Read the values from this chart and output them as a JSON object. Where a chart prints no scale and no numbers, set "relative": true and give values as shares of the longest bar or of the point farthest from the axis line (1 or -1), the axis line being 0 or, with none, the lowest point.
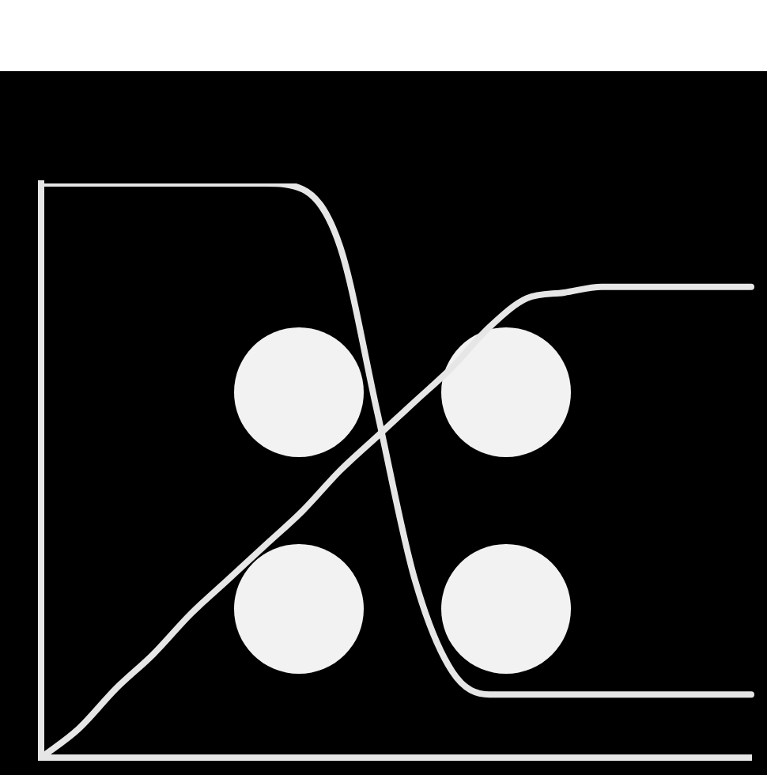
{
  "chart_data": {
    "type": "line",
    "relative": true,
    "categories": [
      null,
      null,
      null,
      null,
      null,
      null,
      null,
      null,
      null,
      null,
      null,
      null,
      null,
      null,
      null,
      null,
      null,
      null,
      null,
      null
    ],
    "series": [
      {
        "color": "#e6e6e6",
        "values": [
          1.0,
          1.0,
          1.0,
          1.0,
          1.0,
          1.0,
          1.0,
          0.99,
          0.89,
          0.6,
          0.31,
          0.15,
          0.11,
          0.11,
          0.11,
          0.11,
          0.11,
          0.11,
          0.11,
          0.11
        ]
      },
      {
        "color": "#e6e6e6",
        "values": [
          0.0,
          0.05,
          0.12,
          0.18,
          0.25,
          0.31,
          0.37,
          0.43,
          0.5,
          0.56,
          0.62,
          0.68,
          0.75,
          0.8,
          0.81,
          0.82,
          0.82,
          0.82,
          0.82,
          0.82
        ]
      }
    ],
    "marker": "none",
    "line_style": "solid",
    "grid": false,
    "legend": false
  }
}
